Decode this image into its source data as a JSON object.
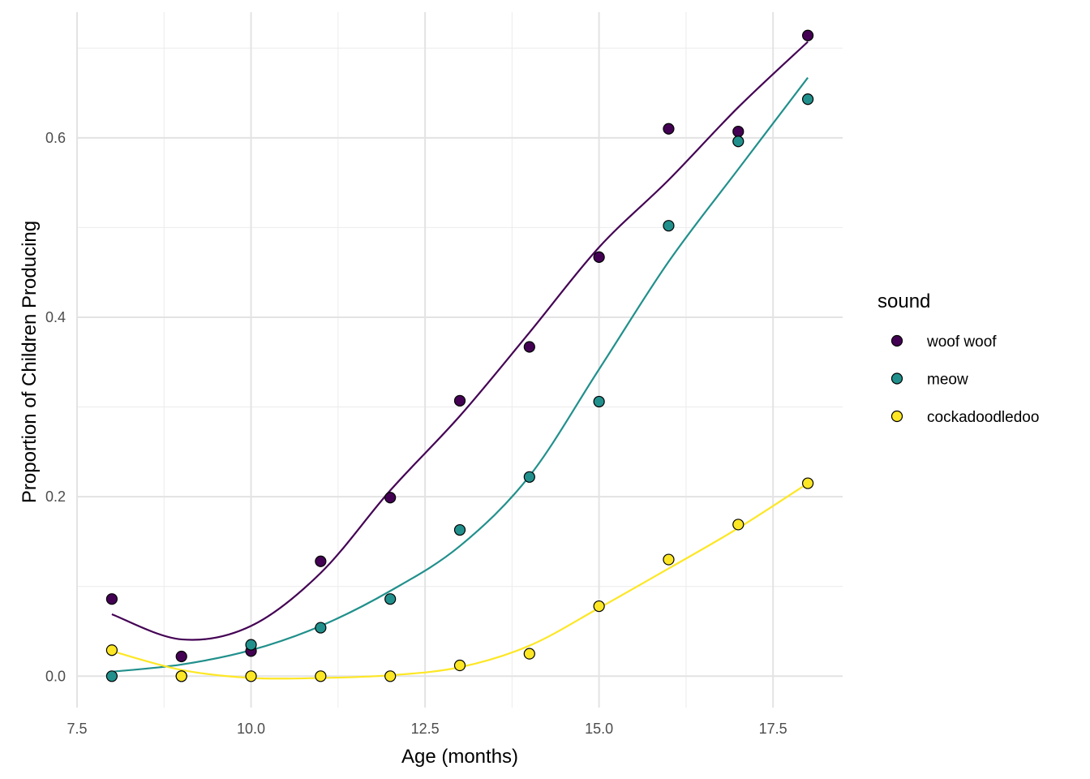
{
  "chart_data": {
    "type": "scatter",
    "xlabel": "Age (months)",
    "ylabel": "Proportion of Children Producing",
    "xlim": [
      7.5,
      18.5
    ],
    "ylim": [
      -0.035,
      0.74
    ],
    "x_ticks": [
      7.5,
      10.0,
      12.5,
      15.0,
      17.5
    ],
    "x_tick_labels": [
      "7.5",
      "10.0",
      "12.5",
      "15.0",
      "17.5"
    ],
    "y_ticks": [
      0.0,
      0.2,
      0.4,
      0.6
    ],
    "y_tick_labels": [
      "0.0",
      "0.2",
      "0.4",
      "0.6"
    ],
    "grid": true,
    "legend": {
      "title": "sound",
      "placement": "right"
    },
    "x": [
      8,
      9,
      10,
      11,
      12,
      13,
      14,
      15,
      16,
      17,
      18
    ],
    "series": [
      {
        "name": "woof woof",
        "color": "#440154",
        "points": [
          0.086,
          0.022,
          0.028,
          0.128,
          0.199,
          0.307,
          0.367,
          0.467,
          0.61,
          0.607,
          0.714
        ],
        "smooth": [
          0.069,
          0.041,
          0.056,
          0.115,
          0.207,
          0.29,
          0.383,
          0.478,
          0.553,
          0.634,
          0.707
        ]
      },
      {
        "name": "meow",
        "color": "#21908C",
        "points": [
          0.0,
          0.0,
          0.035,
          0.054,
          0.086,
          0.163,
          0.222,
          0.306,
          0.502,
          0.596,
          0.643
        ],
        "smooth": [
          0.005,
          0.013,
          0.029,
          0.056,
          0.095,
          0.145,
          0.223,
          0.342,
          0.462,
          0.565,
          0.667
        ]
      },
      {
        "name": "cockadoodledoo",
        "color": "#FDE725",
        "points": [
          0.029,
          0.0,
          0.0,
          0.0,
          0.0,
          0.012,
          0.025,
          0.078,
          0.13,
          0.169,
          0.215
        ],
        "smooth": [
          0.028,
          0.007,
          -0.002,
          -0.002,
          0.001,
          0.01,
          0.034,
          0.076,
          0.12,
          0.165,
          0.215
        ]
      }
    ]
  }
}
